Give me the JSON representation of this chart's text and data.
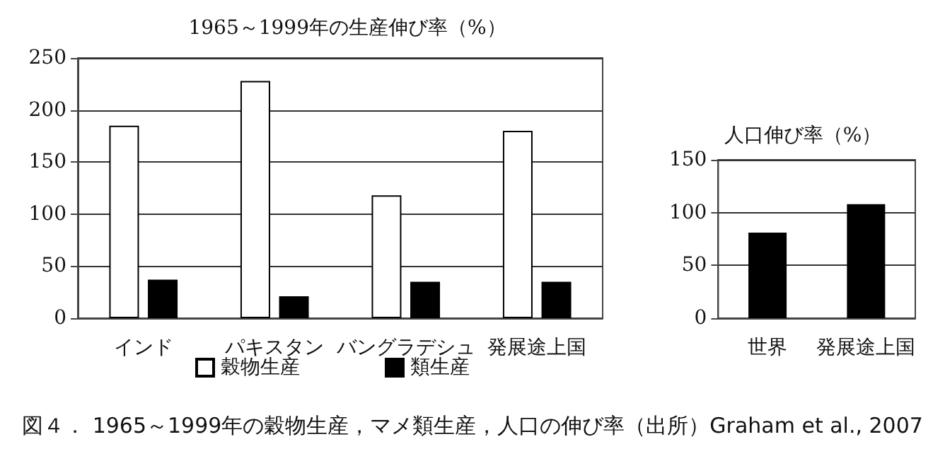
{
  "chart_data": [
    {
      "type": "bar",
      "title": "1965～1999年の生産伸び率（%）",
      "categories": [
        "インド",
        "パキスタン",
        "バングラデシュ",
        "発展途上国"
      ],
      "series": [
        {
          "name": "穀物生産",
          "color": "#ffffff",
          "values": [
            185,
            228,
            118,
            180
          ]
        },
        {
          "name": "類生産",
          "color": "#000000",
          "values": [
            37,
            21,
            35,
            35
          ]
        }
      ],
      "ylim": [
        0,
        250
      ],
      "yticks": [
        0,
        50,
        100,
        150,
        200,
        250
      ],
      "grid": "y",
      "legend": "bottom",
      "annotations": [
        "図４． 1965～1999年の穀物生産，マメ類生産，人口の伸び率（出所）Graham et al., 2007"
      ]
    },
    {
      "type": "bar",
      "title": "人口伸び率（%）",
      "categories": [
        "世界",
        "発展途上国"
      ],
      "series": [
        {
          "color": "#000000",
          "values": [
            81,
            108
          ]
        }
      ],
      "ylim": [
        0,
        150
      ],
      "yticks": [
        0,
        50,
        100,
        150
      ],
      "grid": "y"
    }
  ]
}
